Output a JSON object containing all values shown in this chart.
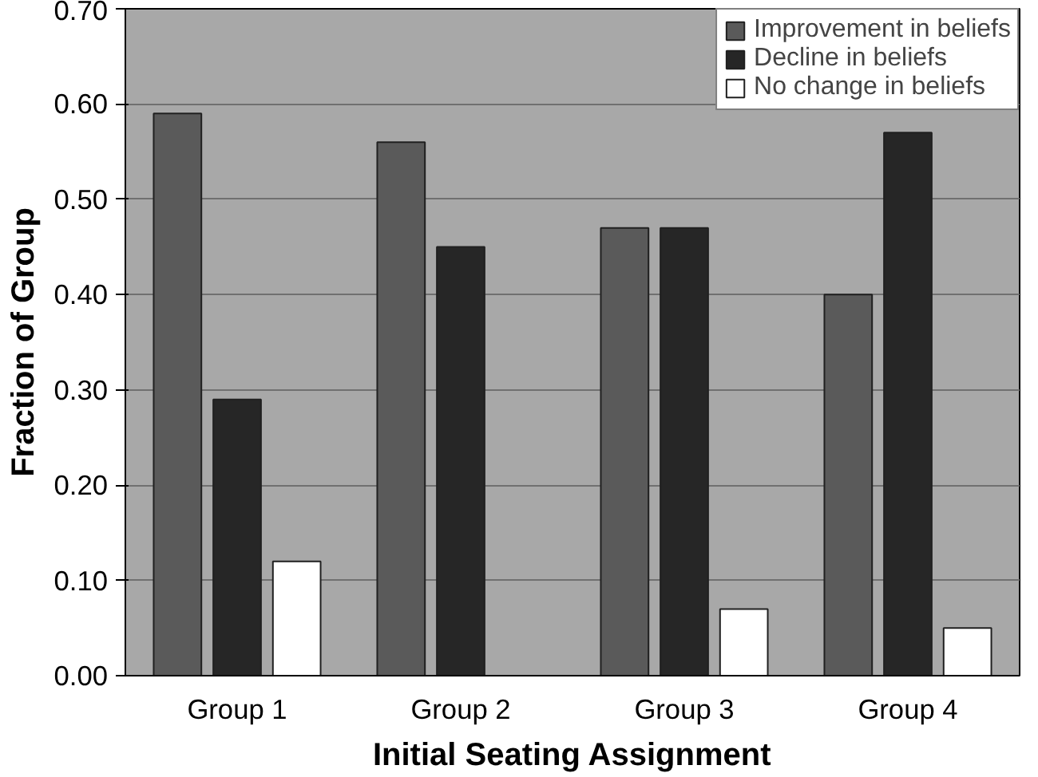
{
  "chart_data": {
    "type": "bar",
    "xlabel": "Initial Seating Assignment",
    "ylabel": "Fraction of Group",
    "categories": [
      "Group 1",
      "Group 2",
      "Group 3",
      "Group 4"
    ],
    "series": [
      {
        "name": "Improvement in beliefs",
        "color": "#5a5a5a",
        "values": [
          0.59,
          0.56,
          0.47,
          0.4
        ]
      },
      {
        "name": "Decline in beliefs",
        "color": "#262626",
        "values": [
          0.29,
          0.45,
          0.47,
          0.57
        ]
      },
      {
        "name": "No change in beliefs",
        "color": "#ffffff",
        "values": [
          0.12,
          null,
          0.07,
          0.05
        ]
      }
    ],
    "ylim": [
      0,
      0.7
    ],
    "yticks": [
      {
        "value": 0,
        "label": "0.00"
      },
      {
        "value": 0.1,
        "label": "0.10"
      },
      {
        "value": 0.2,
        "label": "0.20"
      },
      {
        "value": 0.3,
        "label": "0.30"
      },
      {
        "value": 0.4,
        "label": "0.40"
      },
      {
        "value": 0.5,
        "label": "0.50"
      },
      {
        "value": 0.6,
        "label": "0.60"
      },
      {
        "value": 0.7,
        "label": "0.70"
      }
    ],
    "grid": "y",
    "legend": "top right"
  }
}
